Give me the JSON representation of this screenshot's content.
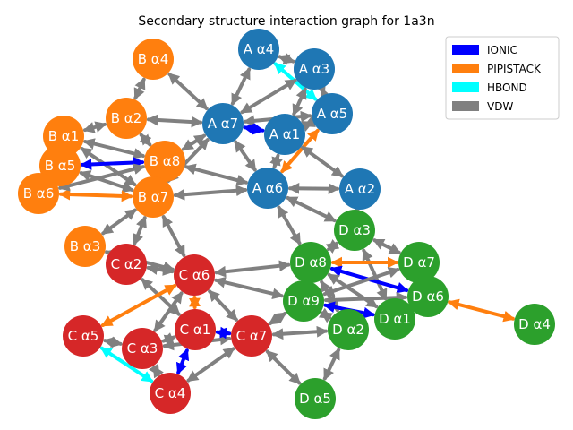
{
  "title": "Secondary structure interaction graph for 1a3n",
  "colors": {
    "chain_A": "#1f77b4",
    "chain_B": "#ff7f0e",
    "chain_C": "#d62728",
    "chain_D": "#2ca02c",
    "IONIC": "#0000ff",
    "PIPISTACK": "#ff7f0e",
    "HBOND": "#00ffff",
    "VDW": "#808080"
  },
  "legend": [
    {
      "label": "IONIC",
      "type": "IONIC"
    },
    {
      "label": "PIPISTACK",
      "type": "PIPISTACK"
    },
    {
      "label": "HBOND",
      "type": "HBOND"
    },
    {
      "label": "VDW",
      "type": "VDW"
    }
  ],
  "nodes": [
    {
      "id": "Aa4",
      "label": "A α4",
      "chain": "A"
    },
    {
      "id": "Aa3",
      "label": "A α3",
      "chain": "A"
    },
    {
      "id": "Aa5",
      "label": "A α5",
      "chain": "A"
    },
    {
      "id": "Aa7",
      "label": "A α7",
      "chain": "A"
    },
    {
      "id": "Aa1",
      "label": "A α1",
      "chain": "A"
    },
    {
      "id": "Aa6",
      "label": "A α6",
      "chain": "A"
    },
    {
      "id": "Aa2",
      "label": "A α2",
      "chain": "A"
    },
    {
      "id": "Ba4",
      "label": "B α4",
      "chain": "B"
    },
    {
      "id": "Ba2",
      "label": "B α2",
      "chain": "B"
    },
    {
      "id": "Ba1",
      "label": "B α1",
      "chain": "B"
    },
    {
      "id": "Ba5",
      "label": "B α5",
      "chain": "B"
    },
    {
      "id": "Ba8",
      "label": "B α8",
      "chain": "B"
    },
    {
      "id": "Ba6",
      "label": "B α6",
      "chain": "B"
    },
    {
      "id": "Ba7",
      "label": "B α7",
      "chain": "B"
    },
    {
      "id": "Ba3",
      "label": "B α3",
      "chain": "B"
    },
    {
      "id": "Ca2",
      "label": "C α2",
      "chain": "C"
    },
    {
      "id": "Ca6",
      "label": "C α6",
      "chain": "C"
    },
    {
      "id": "Ca5",
      "label": "C α5",
      "chain": "C"
    },
    {
      "id": "Ca3",
      "label": "C α3",
      "chain": "C"
    },
    {
      "id": "Ca1",
      "label": "C α1",
      "chain": "C"
    },
    {
      "id": "Ca7",
      "label": "C α7",
      "chain": "C"
    },
    {
      "id": "Ca4",
      "label": "C α4",
      "chain": "C"
    },
    {
      "id": "Da3",
      "label": "D α3",
      "chain": "D"
    },
    {
      "id": "Da8",
      "label": "D α8",
      "chain": "D"
    },
    {
      "id": "Da7",
      "label": "D α7",
      "chain": "D"
    },
    {
      "id": "Da9",
      "label": "D α9",
      "chain": "D"
    },
    {
      "id": "Da6",
      "label": "D α6",
      "chain": "D"
    },
    {
      "id": "Da1",
      "label": "D α1",
      "chain": "D"
    },
    {
      "id": "Da2",
      "label": "D α2",
      "chain": "D"
    },
    {
      "id": "Da4",
      "label": "D α4",
      "chain": "D"
    },
    {
      "id": "Da5",
      "label": "D α5",
      "chain": "D"
    }
  ],
  "edges": [
    {
      "source": "Aa4",
      "target": "Aa3",
      "type": "VDW"
    },
    {
      "source": "Aa4",
      "target": "Aa7",
      "type": "VDW"
    },
    {
      "source": "Aa4",
      "target": "Aa5",
      "type": "HBOND"
    },
    {
      "source": "Aa3",
      "target": "Aa7",
      "type": "VDW"
    },
    {
      "source": "Aa3",
      "target": "Aa5",
      "type": "VDW"
    },
    {
      "source": "Aa3",
      "target": "Aa1",
      "type": "VDW"
    },
    {
      "source": "Aa7",
      "target": "Aa5",
      "type": "VDW"
    },
    {
      "source": "Aa7",
      "target": "Aa1",
      "type": "IONIC"
    },
    {
      "source": "Aa7",
      "target": "Aa6",
      "type": "VDW"
    },
    {
      "source": "Aa7",
      "target": "Ba2",
      "type": "VDW"
    },
    {
      "source": "Aa7",
      "target": "Ba7",
      "type": "VDW"
    },
    {
      "source": "Aa7",
      "target": "Ba8",
      "type": "VDW"
    },
    {
      "source": "Aa7",
      "target": "Ba4",
      "type": "VDW"
    },
    {
      "source": "Aa5",
      "target": "Aa1",
      "type": "VDW"
    },
    {
      "source": "Aa5",
      "target": "Aa6",
      "type": "PIPISTACK"
    },
    {
      "source": "Aa1",
      "target": "Aa6",
      "type": "VDW"
    },
    {
      "source": "Aa1",
      "target": "Aa2",
      "type": "VDW"
    },
    {
      "source": "Aa6",
      "target": "Aa2",
      "type": "VDW"
    },
    {
      "source": "Aa6",
      "target": "Ba7",
      "type": "VDW"
    },
    {
      "source": "Aa6",
      "target": "Ba8",
      "type": "VDW"
    },
    {
      "source": "Aa6",
      "target": "Da8",
      "type": "VDW"
    },
    {
      "source": "Aa6",
      "target": "Da3",
      "type": "VDW"
    },
    {
      "source": "Aa2",
      "target": "Da3",
      "type": "VDW"
    },
    {
      "source": "Ba4",
      "target": "Ba2",
      "type": "VDW"
    },
    {
      "source": "Ba2",
      "target": "Ba1",
      "type": "VDW"
    },
    {
      "source": "Ba2",
      "target": "Ba8",
      "type": "VDW"
    },
    {
      "source": "Ba1",
      "target": "Ba5",
      "type": "VDW"
    },
    {
      "source": "Ba1",
      "target": "Ba8",
      "type": "VDW"
    },
    {
      "source": "Ba1",
      "target": "Ba7",
      "type": "VDW"
    },
    {
      "source": "Ba5",
      "target": "Ba8",
      "type": "IONIC"
    },
    {
      "source": "Ba5",
      "target": "Ba7",
      "type": "VDW"
    },
    {
      "source": "Ba5",
      "target": "Ba6",
      "type": "VDW"
    },
    {
      "source": "Ba8",
      "target": "Ba7",
      "type": "VDW"
    },
    {
      "source": "Ba6",
      "target": "Ba7",
      "type": "PIPISTACK"
    },
    {
      "source": "Ba6",
      "target": "Ba8",
      "type": "VDW"
    },
    {
      "source": "Ba7",
      "target": "Ba3",
      "type": "VDW"
    },
    {
      "source": "Ba7",
      "target": "Ca6",
      "type": "VDW"
    },
    {
      "source": "Ba7",
      "target": "Ca2",
      "type": "VDW"
    },
    {
      "source": "Ba3",
      "target": "Ca6",
      "type": "VDW"
    },
    {
      "source": "Ca2",
      "target": "Ca6",
      "type": "VDW"
    },
    {
      "source": "Ca2",
      "target": "Ca1",
      "type": "VDW"
    },
    {
      "source": "Ca6",
      "target": "Ca5",
      "type": "PIPISTACK"
    },
    {
      "source": "Ca6",
      "target": "Ca3",
      "type": "VDW"
    },
    {
      "source": "Ca6",
      "target": "Ca1",
      "type": "PIPISTACK"
    },
    {
      "source": "Ca6",
      "target": "Ca7",
      "type": "VDW"
    },
    {
      "source": "Ca6",
      "target": "Da8",
      "type": "VDW"
    },
    {
      "source": "Ca6",
      "target": "Da9",
      "type": "VDW"
    },
    {
      "source": "Ca5",
      "target": "Ca3",
      "type": "VDW"
    },
    {
      "source": "Ca5",
      "target": "Ca4",
      "type": "HBOND"
    },
    {
      "source": "Ca3",
      "target": "Ca1",
      "type": "VDW"
    },
    {
      "source": "Ca3",
      "target": "Ca4",
      "type": "VDW"
    },
    {
      "source": "Ca3",
      "target": "Ca7",
      "type": "VDW"
    },
    {
      "source": "Ca1",
      "target": "Ca7",
      "type": "IONIC"
    },
    {
      "source": "Ca1",
      "target": "Ca4",
      "type": "IONIC"
    },
    {
      "source": "Ca7",
      "target": "Ca4",
      "type": "VDW"
    },
    {
      "source": "Ca7",
      "target": "Da9",
      "type": "VDW"
    },
    {
      "source": "Ca7",
      "target": "Da2",
      "type": "VDW"
    },
    {
      "source": "Ca7",
      "target": "Da5",
      "type": "VDW"
    },
    {
      "source": "Da3",
      "target": "Da8",
      "type": "VDW"
    },
    {
      "source": "Da3",
      "target": "Da7",
      "type": "VDW"
    },
    {
      "source": "Da3",
      "target": "Da1",
      "type": "VDW"
    },
    {
      "source": "Da8",
      "target": "Da7",
      "type": "PIPISTACK"
    },
    {
      "source": "Da8",
      "target": "Da9",
      "type": "VDW"
    },
    {
      "source": "Da8",
      "target": "Da6",
      "type": "IONIC"
    },
    {
      "source": "Da8",
      "target": "Da1",
      "type": "VDW"
    },
    {
      "source": "Da8",
      "target": "Da2",
      "type": "VDW"
    },
    {
      "source": "Da7",
      "target": "Da6",
      "type": "IONIC"
    },
    {
      "source": "Da7",
      "target": "Da9",
      "type": "VDW"
    },
    {
      "source": "Da9",
      "target": "Da6",
      "type": "VDW"
    },
    {
      "source": "Da9",
      "target": "Da1",
      "type": "IONIC"
    },
    {
      "source": "Da9",
      "target": "Da2",
      "type": "VDW"
    },
    {
      "source": "Da6",
      "target": "Da4",
      "type": "PIPISTACK"
    },
    {
      "source": "Da6",
      "target": "Da1",
      "type": "PIPISTACK"
    },
    {
      "source": "Da2",
      "target": "Da5",
      "type": "VDW"
    }
  ]
}
